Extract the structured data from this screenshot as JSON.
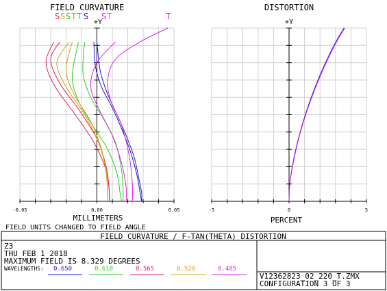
{
  "chart_data": [
    {
      "type": "line",
      "title": "FIELD CURVATURE",
      "xlabel": "MILLIMETERS",
      "ylabel": "+Y",
      "xlim": [
        -0.05,
        0.05
      ],
      "ylim": [
        0,
        1
      ],
      "x_ticks": [
        "-0.05",
        "0.00",
        "0.05"
      ],
      "grid": true,
      "legend_labels": [
        {
          "text": "S",
          "color": "#e0204a"
        },
        {
          "text": "S",
          "color": "#d4a017"
        },
        {
          "text": "S",
          "color": "#22cc22"
        },
        {
          "text": "T",
          "color": "#d4a017"
        },
        {
          "text": "T",
          "color": "#22cc22"
        },
        {
          "text": "S",
          "color": "#1a1acc"
        },
        {
          "text": "S",
          "color": "#e020e0"
        },
        {
          "text": "T",
          "color": "#d4a017"
        },
        {
          "text": "T",
          "color": "#e020e0"
        }
      ],
      "series": [
        {
          "color": "#1a1acc",
          "x": [
            0.0,
            0.002,
            0.006,
            0.012,
            0.018,
            0.024,
            0.027,
            0.029,
            0.029
          ],
          "y": [
            0.92,
            0.76,
            0.64,
            0.52,
            0.4,
            0.26,
            0.14,
            0.05,
            0.0
          ]
        },
        {
          "color": "#1a1acc",
          "x": [
            -0.002,
            -0.001,
            0.003,
            0.01,
            0.016,
            0.022,
            0.026,
            0.028,
            0.029
          ],
          "y": [
            0.92,
            0.78,
            0.66,
            0.54,
            0.42,
            0.28,
            0.15,
            0.05,
            0.0
          ]
        },
        {
          "color": "#22cc22",
          "x": [
            -0.008,
            -0.009,
            -0.004,
            0.004,
            0.012,
            0.016,
            0.017,
            0.017
          ],
          "y": [
            0.92,
            0.74,
            0.6,
            0.48,
            0.34,
            0.18,
            0.06,
            0.0
          ]
        },
        {
          "color": "#22cc22",
          "x": [
            -0.012,
            -0.016,
            -0.012,
            -0.003,
            0.007,
            0.013,
            0.015,
            0.016
          ],
          "y": [
            0.92,
            0.72,
            0.58,
            0.44,
            0.3,
            0.16,
            0.05,
            0.0
          ]
        },
        {
          "color": "#e0204a",
          "x": [
            -0.028,
            -0.033,
            -0.027,
            -0.014,
            -0.002,
            0.006,
            0.008,
            0.008
          ],
          "y": [
            0.92,
            0.8,
            0.66,
            0.5,
            0.34,
            0.18,
            0.06,
            0.0
          ]
        },
        {
          "color": "#e0204a",
          "x": [
            -0.024,
            -0.03,
            -0.024,
            -0.011,
            0.0,
            0.006,
            0.008,
            0.008
          ],
          "y": [
            0.92,
            0.82,
            0.68,
            0.52,
            0.36,
            0.2,
            0.06,
            0.0
          ]
        },
        {
          "color": "#d4a017",
          "x": [
            -0.018,
            -0.026,
            -0.02,
            -0.008,
            0.001,
            0.006,
            0.007,
            0.007
          ],
          "y": [
            0.92,
            0.8,
            0.66,
            0.5,
            0.34,
            0.18,
            0.06,
            0.0
          ]
        },
        {
          "color": "#d4a017",
          "x": [
            -0.016,
            -0.02,
            -0.015,
            -0.004,
            0.003,
            0.006,
            0.007,
            0.007
          ],
          "y": [
            0.92,
            0.76,
            0.62,
            0.46,
            0.3,
            0.16,
            0.05,
            0.0
          ]
        },
        {
          "color": "#e020e0",
          "x": [
            0.046,
            0.028,
            0.012,
            0.007,
            0.009,
            0.016,
            0.021,
            0.023,
            0.023
          ],
          "y": [
            1.0,
            0.92,
            0.82,
            0.7,
            0.58,
            0.44,
            0.26,
            0.1,
            0.0
          ]
        },
        {
          "color": "#e020e0",
          "x": [
            0.012,
            0.0,
            -0.004,
            0.002,
            0.01,
            0.016,
            0.019,
            0.019
          ],
          "y": [
            0.92,
            0.8,
            0.66,
            0.52,
            0.38,
            0.22,
            0.08,
            0.0
          ]
        }
      ]
    },
    {
      "type": "line",
      "title": "DISTORTION",
      "xlabel": "PERCENT",
      "ylabel": "+Y",
      "xlim": [
        -5,
        5
      ],
      "ylim": [
        0,
        1
      ],
      "x_ticks": [
        "-5",
        "0",
        "5"
      ],
      "grid": true,
      "series": [
        {
          "color": "#1a1acc",
          "x": [
            0,
            0.05,
            0.25,
            0.6,
            1.05,
            1.6,
            2.2,
            2.9,
            3.55
          ],
          "y": [
            0.0,
            0.1,
            0.22,
            0.36,
            0.5,
            0.64,
            0.77,
            0.9,
            1.0
          ]
        },
        {
          "color": "#e020e0",
          "x": [
            0,
            0.05,
            0.27,
            0.62,
            1.08,
            1.64,
            2.25,
            2.95,
            3.6
          ],
          "y": [
            0.0,
            0.1,
            0.22,
            0.36,
            0.5,
            0.64,
            0.77,
            0.9,
            1.0
          ]
        }
      ]
    }
  ],
  "note": "FIELD UNITS CHANGED TO FIELD ANGLE",
  "banner_title": "FIELD CURVATURE / F-TAN(THETA) DISTORTION",
  "info": {
    "surface": "Z3",
    "date": "THU FEB 1 2018",
    "max_field": "MAXIMUM FIELD IS 8.329 DEGREES",
    "wavelengths_label": "WAVELENGTHS:",
    "wavelengths": [
      {
        "value": "0.650",
        "color": "#1a1acc"
      },
      {
        "value": "0.610",
        "color": "#22cc22"
      },
      {
        "value": "0.565",
        "color": "#e0204a"
      },
      {
        "value": "0.520",
        "color": "#d4a017"
      },
      {
        "value": "0.485",
        "color": "#e020e0"
      }
    ]
  },
  "file_name": "V12362823_02_220_T.ZMX",
  "configuration": "CONFIGURATION 3 OF 3"
}
